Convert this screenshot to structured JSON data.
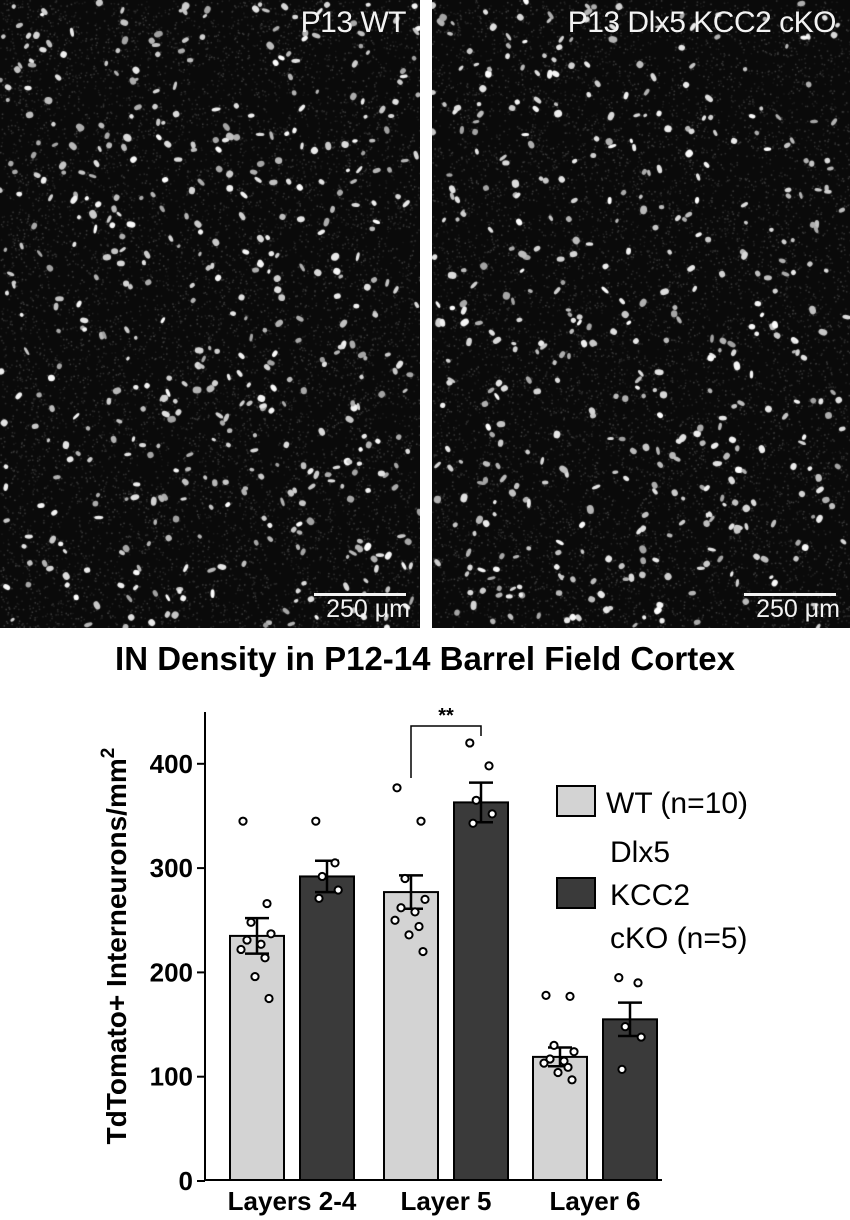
{
  "panels": {
    "wt": {
      "label": "P13 WT",
      "scale_label": "250 μm"
    },
    "ko": {
      "label": "P13 Dlx5 KCC2 cKO",
      "scale_label": "250 μm"
    }
  },
  "chart_data": {
    "type": "bar",
    "title": "IN Density in P12-14 Barrel Field Cortex",
    "ylabel": "TdTomato+ Interneurons/mm",
    "ylabel_superscript": "2",
    "xlabel": "",
    "categories": [
      "Layers 2-4",
      "Layer 5",
      "Layer 6"
    ],
    "ylim": [
      0,
      450
    ],
    "yticks": [
      0,
      100,
      200,
      300,
      400
    ],
    "series": [
      {
        "name": "WT (n=10)",
        "color": "#d3d3d3",
        "values": [
          235,
          277,
          119
        ],
        "sem": [
          17,
          16,
          9
        ],
        "points": [
          [
            345,
            266,
            248,
            237,
            231,
            227,
            222,
            214,
            196,
            175
          ],
          [
            377,
            345,
            290,
            270,
            262,
            258,
            250,
            244,
            236,
            220
          ],
          [
            178,
            177,
            130,
            124,
            117,
            115,
            113,
            109,
            104,
            97
          ]
        ]
      },
      {
        "name": "Dlx5 KCC2 cKO (n=5)",
        "color": "#3a3a3a",
        "values": [
          292,
          363,
          155
        ],
        "sem": [
          15,
          19,
          16
        ],
        "points": [
          [
            345,
            305,
            292,
            279,
            271
          ],
          [
            420,
            398,
            365,
            352,
            343
          ],
          [
            195,
            190,
            148,
            138,
            107
          ]
        ]
      }
    ],
    "legend_placement": "right",
    "legend": {
      "wt_label": "WT (n=10)",
      "ko_lines": [
        "Dlx5",
        "KCC2",
        "cKO (n=5)"
      ]
    },
    "annotations": [
      {
        "text": "**",
        "category": "Layer 5",
        "between": "WT vs cKO"
      }
    ],
    "grid": false
  }
}
